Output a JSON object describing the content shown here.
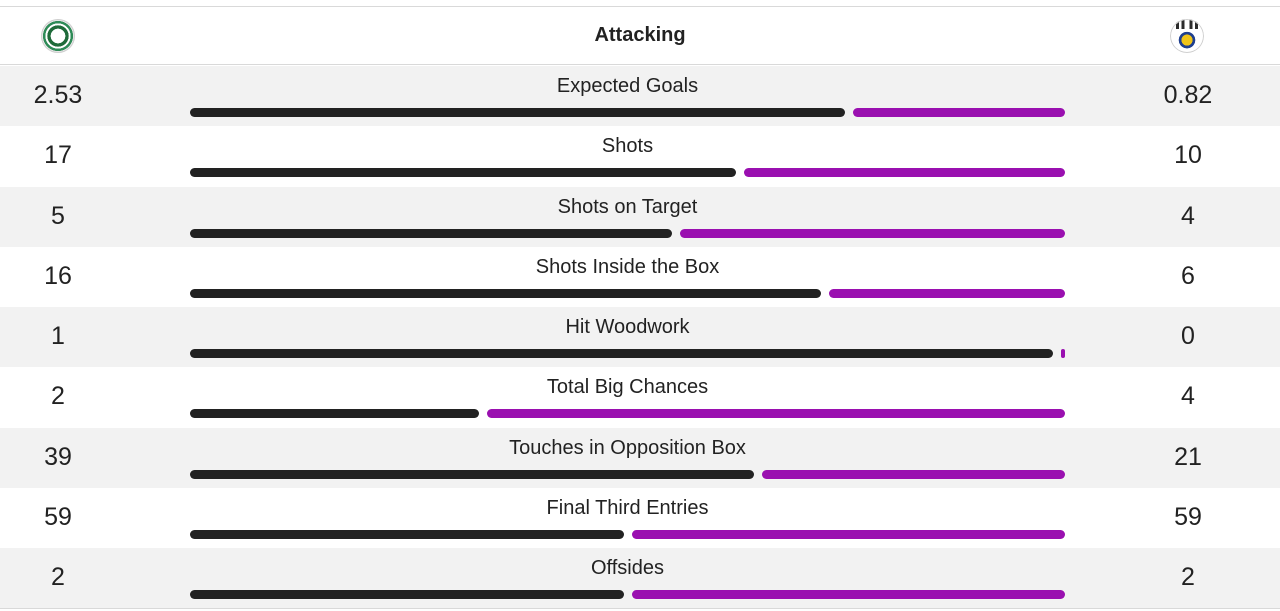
{
  "header": {
    "title": "Attacking",
    "home_crest_icon": "home-team-crest-icon",
    "away_crest_icon": "away-team-crest-icon"
  },
  "colors": {
    "home_bar": "#222222",
    "away_bar": "#9a10b0"
  },
  "stats": [
    {
      "label": "Expected Goals",
      "home": "2.53",
      "away": "0.82",
      "home_value": 2.53,
      "away_value": 0.82
    },
    {
      "label": "Shots",
      "home": "17",
      "away": "10",
      "home_value": 17,
      "away_value": 10
    },
    {
      "label": "Shots on Target",
      "home": "5",
      "away": "4",
      "home_value": 5,
      "away_value": 4
    },
    {
      "label": "Shots Inside the Box",
      "home": "16",
      "away": "6",
      "home_value": 16,
      "away_value": 6
    },
    {
      "label": "Hit Woodwork",
      "home": "1",
      "away": "0",
      "home_value": 1,
      "away_value": 0
    },
    {
      "label": "Total Big Chances",
      "home": "2",
      "away": "4",
      "home_value": 2,
      "away_value": 4
    },
    {
      "label": "Touches in Opposition Box",
      "home": "39",
      "away": "21",
      "home_value": 39,
      "away_value": 21
    },
    {
      "label": "Final Third Entries",
      "home": "59",
      "away": "59",
      "home_value": 59,
      "away_value": 59
    },
    {
      "label": "Offsides",
      "home": "2",
      "away": "2",
      "home_value": 2,
      "away_value": 2
    }
  ]
}
